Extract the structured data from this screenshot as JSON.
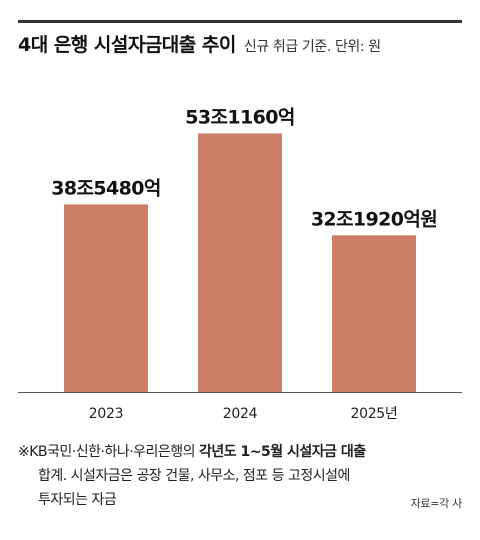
{
  "header": {
    "title": "4대 은행 시설자금대출 추이",
    "subtitle": "신규 취급 기준. 단위: 원"
  },
  "colors": {
    "bar": "#cc7e67",
    "rule": "#333333"
  },
  "chart_data": {
    "type": "bar",
    "categories": [
      "2023",
      "2024",
      "2025년"
    ],
    "values": [
      38.548,
      53.116,
      32.192
    ],
    "data_labels": [
      "38조5480억",
      "53조1160억",
      "32조1920억원"
    ],
    "unit": "조원",
    "ylim": [
      0,
      60
    ],
    "grid": false,
    "legend": "none"
  },
  "footnote": {
    "prefix": "※KB국민·신한·하나·우리은행의 ",
    "bold": "각년도 1~5월 시설자금 대출",
    "line2": "합계. 시설자금은 공장 건물, 사무소, 점포 등 고정시설에",
    "line3": "투자되는 자금"
  },
  "source": "자료=각 사"
}
